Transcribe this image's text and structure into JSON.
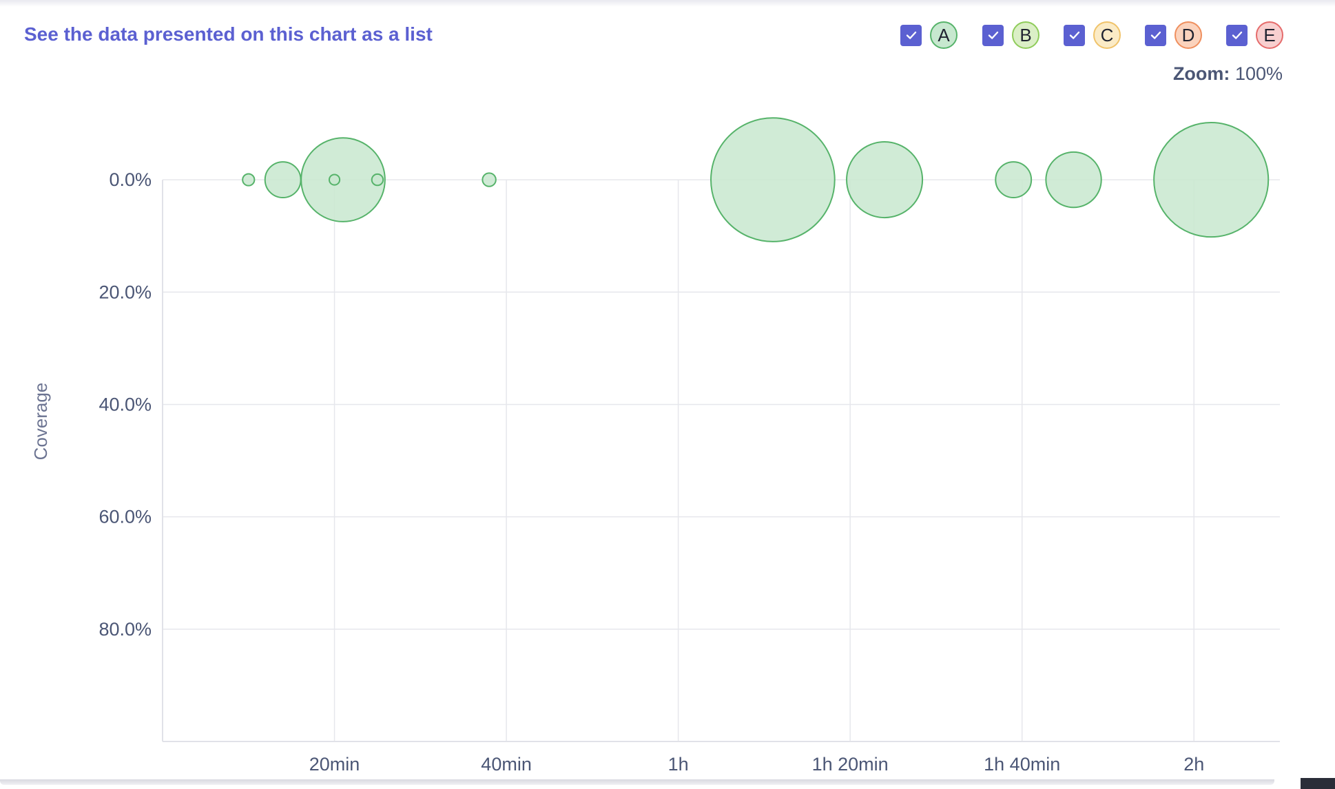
{
  "list_link": "See the data presented on this chart as a list",
  "legend": [
    {
      "label": "A",
      "fill": "#c7e8cf",
      "stroke": "#56b36a",
      "checked": true
    },
    {
      "label": "B",
      "fill": "#dbefc6",
      "stroke": "#8fcc5a",
      "checked": true
    },
    {
      "label": "C",
      "fill": "#fbebc6",
      "stroke": "#f0c36a",
      "checked": true
    },
    {
      "label": "D",
      "fill": "#fbd3bd",
      "stroke": "#ef8f5e",
      "checked": true
    },
    {
      "label": "E",
      "fill": "#f8cfcf",
      "stroke": "#e56b6b",
      "checked": true
    }
  ],
  "zoom": {
    "label": "Zoom:",
    "value": "100%"
  },
  "chart_data": {
    "type": "scatter",
    "ylabel": "Coverage",
    "xlabel": "",
    "x_unit": "minutes",
    "y_unit": "percent",
    "x_ticks": [
      {
        "value": 20,
        "label": "20min"
      },
      {
        "value": 40,
        "label": "40min"
      },
      {
        "value": 60,
        "label": "1h"
      },
      {
        "value": 80,
        "label": "1h 20min"
      },
      {
        "value": 100,
        "label": "1h 40min"
      },
      {
        "value": 120,
        "label": "2h"
      }
    ],
    "y_ticks": [
      {
        "value": 0,
        "label": "0.0%"
      },
      {
        "value": 20,
        "label": "20.0%"
      },
      {
        "value": 40,
        "label": "40.0%"
      },
      {
        "value": 60,
        "label": "60.0%"
      },
      {
        "value": 80,
        "label": "80.0%"
      }
    ],
    "xlim": [
      0,
      130
    ],
    "ylim": [
      -13,
      100
    ],
    "y_inverted": true,
    "grid": true,
    "series": [
      {
        "rating": "A",
        "color": "#56b36a",
        "fill": "#c8e8cf",
        "points": [
          {
            "x": 10,
            "y": 0,
            "size": 2.2
          },
          {
            "x": 14,
            "y": 0,
            "size": 20
          },
          {
            "x": 21,
            "y": 0,
            "size": 110
          },
          {
            "x": 20,
            "y": 0,
            "size": 1.7
          },
          {
            "x": 25,
            "y": 0,
            "size": 2.0
          },
          {
            "x": 38,
            "y": 0,
            "size": 2.8
          },
          {
            "x": 71,
            "y": 0,
            "size": 240
          },
          {
            "x": 84,
            "y": 0,
            "size": 90
          },
          {
            "x": 99,
            "y": 0,
            "size": 20
          },
          {
            "x": 106,
            "y": 0,
            "size": 48
          },
          {
            "x": 122,
            "y": 0,
            "size": 205
          }
        ]
      }
    ]
  }
}
